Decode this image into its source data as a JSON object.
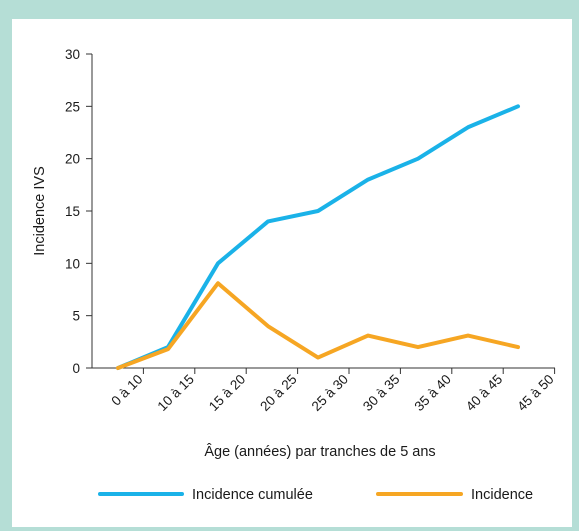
{
  "colors": {
    "frame": "#b5ded6",
    "incidence_cumulee": "#1ab2e8",
    "incidence": "#f6a623",
    "axis": "#333333"
  },
  "chart_data": {
    "type": "line",
    "title": "",
    "xlabel": "Âge (années) par tranches de 5 ans",
    "ylabel": "Incidence IVS",
    "categories": [
      "0 à 10",
      "10 à 15",
      "15 à 20",
      "20 à 25",
      "25 à 30",
      "30 à 35",
      "35 à 40",
      "40 à 45",
      "45 à 50"
    ],
    "ylim": [
      0,
      30
    ],
    "yticks": [
      "0",
      "5",
      "10",
      "15",
      "20",
      "25",
      "30"
    ],
    "grid": false,
    "legend_position": "bottom",
    "series": [
      {
        "name": "Incidence cumulée",
        "color": "#1ab2e8",
        "values": [
          0,
          2,
          10,
          14,
          15,
          18,
          20,
          23,
          25
        ]
      },
      {
        "name": "Incidence",
        "color": "#f6a623",
        "values": [
          0,
          1.8,
          8.1,
          4,
          1,
          3.1,
          2,
          3.1,
          2
        ]
      }
    ]
  }
}
